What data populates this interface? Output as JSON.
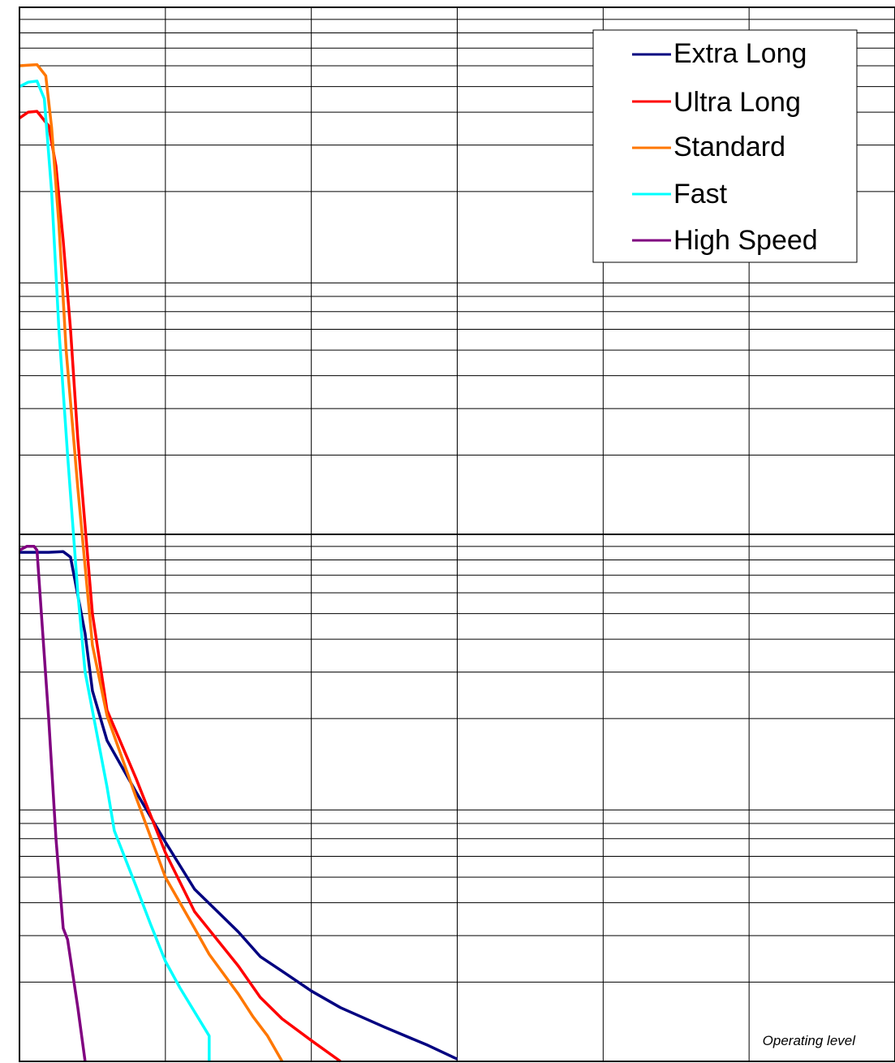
{
  "chart_data": {
    "type": "line",
    "title": "",
    "xlabel": "",
    "ylabel": "",
    "tick_labels_shown": false,
    "grid": true,
    "x_grid_divisions": 6,
    "xlim": [
      0,
      6
    ],
    "y_scale": "log",
    "ylim": [
      0.01,
      100
    ],
    "reference_line_y": 1,
    "legend_position": "top-right",
    "annotations": [
      {
        "text": "Operating level"
      }
    ],
    "series": [
      {
        "name": "Extra Long",
        "color": "#000080",
        "points": [
          [
            0,
            0.855
          ],
          [
            0.2,
            0.855
          ],
          [
            0.3,
            0.86
          ],
          [
            0.35,
            0.82
          ],
          [
            0.45,
            0.42
          ],
          [
            0.5,
            0.255
          ],
          [
            0.6,
            0.165
          ],
          [
            0.8,
            0.105
          ],
          [
            1.0,
            0.068
          ],
          [
            1.2,
            0.045
          ],
          [
            1.5,
            0.031
          ],
          [
            1.65,
            0.025
          ],
          [
            1.8,
            0.022
          ],
          [
            2.0,
            0.0185
          ],
          [
            2.2,
            0.016
          ],
          [
            2.5,
            0.0135
          ],
          [
            2.8,
            0.0115
          ],
          [
            3.0,
            0.0102
          ]
        ]
      },
      {
        "name": "Ultra Long",
        "color": "#ff0000",
        "points": [
          [
            0,
            38
          ],
          [
            0.06,
            40
          ],
          [
            0.12,
            40.3
          ],
          [
            0.2,
            35.5
          ],
          [
            0.25,
            25
          ],
          [
            0.3,
            13
          ],
          [
            0.35,
            6
          ],
          [
            0.4,
            2.3
          ],
          [
            0.5,
            0.5
          ],
          [
            0.6,
            0.215
          ],
          [
            0.8,
            0.118
          ],
          [
            1.0,
            0.062
          ],
          [
            1.2,
            0.037
          ],
          [
            1.5,
            0.023
          ],
          [
            1.65,
            0.0175
          ],
          [
            1.8,
            0.0145
          ],
          [
            2.0,
            0.012
          ],
          [
            2.2,
            0.01
          ]
        ]
      },
      {
        "name": "Standard",
        "color": "#ff7700",
        "points": [
          [
            0,
            60
          ],
          [
            0.06,
            60.3
          ],
          [
            0.12,
            60.6
          ],
          [
            0.18,
            55
          ],
          [
            0.22,
            35
          ],
          [
            0.27,
            15
          ],
          [
            0.32,
            5
          ],
          [
            0.4,
            1.5
          ],
          [
            0.5,
            0.38
          ],
          [
            0.6,
            0.205
          ],
          [
            0.8,
            0.1
          ],
          [
            1.0,
            0.05
          ],
          [
            1.2,
            0.032
          ],
          [
            1.3,
            0.0255
          ],
          [
            1.5,
            0.018
          ],
          [
            1.6,
            0.0148
          ],
          [
            1.7,
            0.0125
          ],
          [
            1.8,
            0.01
          ]
        ]
      },
      {
        "name": "Fast",
        "color": "#00ffff",
        "points": [
          [
            0,
            50
          ],
          [
            0.06,
            52
          ],
          [
            0.12,
            52.5
          ],
          [
            0.17,
            45
          ],
          [
            0.22,
            20
          ],
          [
            0.27,
            6
          ],
          [
            0.33,
            2
          ],
          [
            0.4,
            0.6
          ],
          [
            0.45,
            0.3
          ],
          [
            0.6,
            0.11
          ],
          [
            0.65,
            0.075
          ],
          [
            0.8,
            0.046
          ],
          [
            0.9,
            0.033
          ],
          [
            1.0,
            0.024
          ],
          [
            1.1,
            0.019
          ],
          [
            1.3,
            0.0125
          ],
          [
            1.3,
            0.01
          ]
        ]
      },
      {
        "name": "High Speed",
        "color": "#800080",
        "points": [
          [
            0,
            0.87
          ],
          [
            0.05,
            0.9
          ],
          [
            0.1,
            0.9
          ],
          [
            0.12,
            0.87
          ],
          [
            0.15,
            0.5
          ],
          [
            0.2,
            0.2
          ],
          [
            0.25,
            0.07
          ],
          [
            0.3,
            0.032
          ],
          [
            0.33,
            0.029
          ],
          [
            0.4,
            0.016
          ],
          [
            0.45,
            0.01
          ]
        ]
      }
    ]
  }
}
